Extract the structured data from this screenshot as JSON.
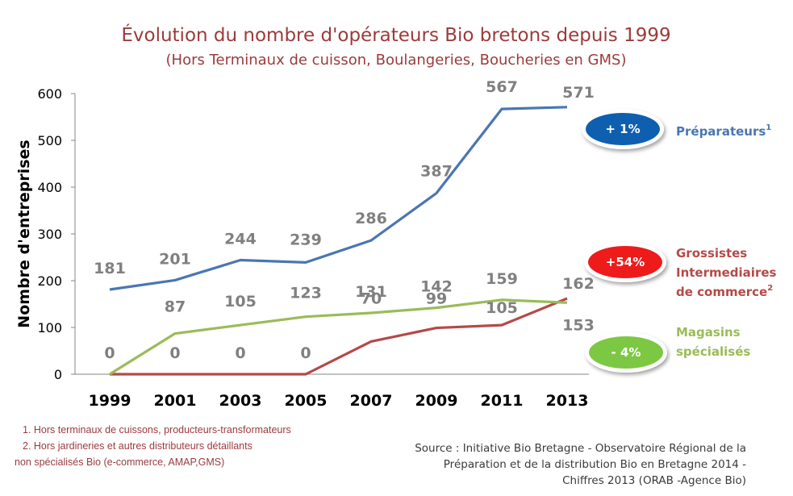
{
  "chart_data": {
    "type": "line",
    "title": "Évolution du nombre d'opérateurs Bio bretons depuis 1999",
    "subtitle": "(Hors Terminaux de cuisson, Boulangeries, Boucheries en GMS)",
    "ylabel": "Nombre  d'entreprises",
    "xlabel": "",
    "ylim": [
      0,
      600
    ],
    "yticks": [
      "0",
      "100",
      "200",
      "300",
      "400",
      "500",
      "600"
    ],
    "categories": [
      "1999",
      "2001",
      "2003",
      "2005",
      "2007",
      "2009",
      "2011",
      "2013"
    ],
    "grid": false,
    "series": [
      {
        "key": "preparateurs",
        "legend": "Préparateurs",
        "legend_sup": "1",
        "color": "#4a76b2",
        "label_color": "#808080",
        "final_color": "#2e75b6",
        "values": [
          181,
          201,
          244,
          239,
          286,
          387,
          567,
          571
        ],
        "labels": [
          "181",
          "201",
          "244",
          "239",
          "286",
          "387",
          "567",
          "571"
        ],
        "badge": "+ 1%",
        "badge_color": "#0f5fb0"
      },
      {
        "key": "grossistes",
        "legend_lines": [
          "Grossistes",
          "Intermediaires",
          "de commerce"
        ],
        "legend_sup": "2",
        "color": "#b44a48",
        "label_color": "#808080",
        "final_color": "#e02020",
        "values": [
          0,
          0,
          0,
          0,
          70,
          99,
          105,
          162
        ],
        "labels": [
          "0",
          "0",
          "0",
          "0",
          "70",
          "99",
          "105",
          "162"
        ],
        "badge": "+54%",
        "badge_color": "#ee1b1b"
      },
      {
        "key": "magasins",
        "legend_lines": [
          "Magasins",
          "spécialisés"
        ],
        "color": "#9bbb59",
        "label_color": "#808080",
        "final_color": "#1fa050",
        "values": [
          0,
          87,
          105,
          123,
          131,
          142,
          159,
          153
        ],
        "labels": [
          "",
          "87",
          "105",
          "123",
          "131",
          "142",
          "159",
          "153"
        ],
        "badge": "- 4%",
        "badge_color": "#7dc843"
      }
    ]
  },
  "footnotes": [
    "1.  Hors terminaux de  cuissons, producteurs-transformateurs",
    "2. Hors jardineries et autres distributeurs détaillants",
    "non spécialisés Bio  (e-commerce, AMAP,GMS)"
  ],
  "source": [
    "Source  : Initiative Bio Bretagne - Observatoire Régional de la",
    "Préparation et de  la distribution Bio en Bretagne 2014 -",
    "Chiffres 2013 (ORAB -Agence Bio)"
  ]
}
